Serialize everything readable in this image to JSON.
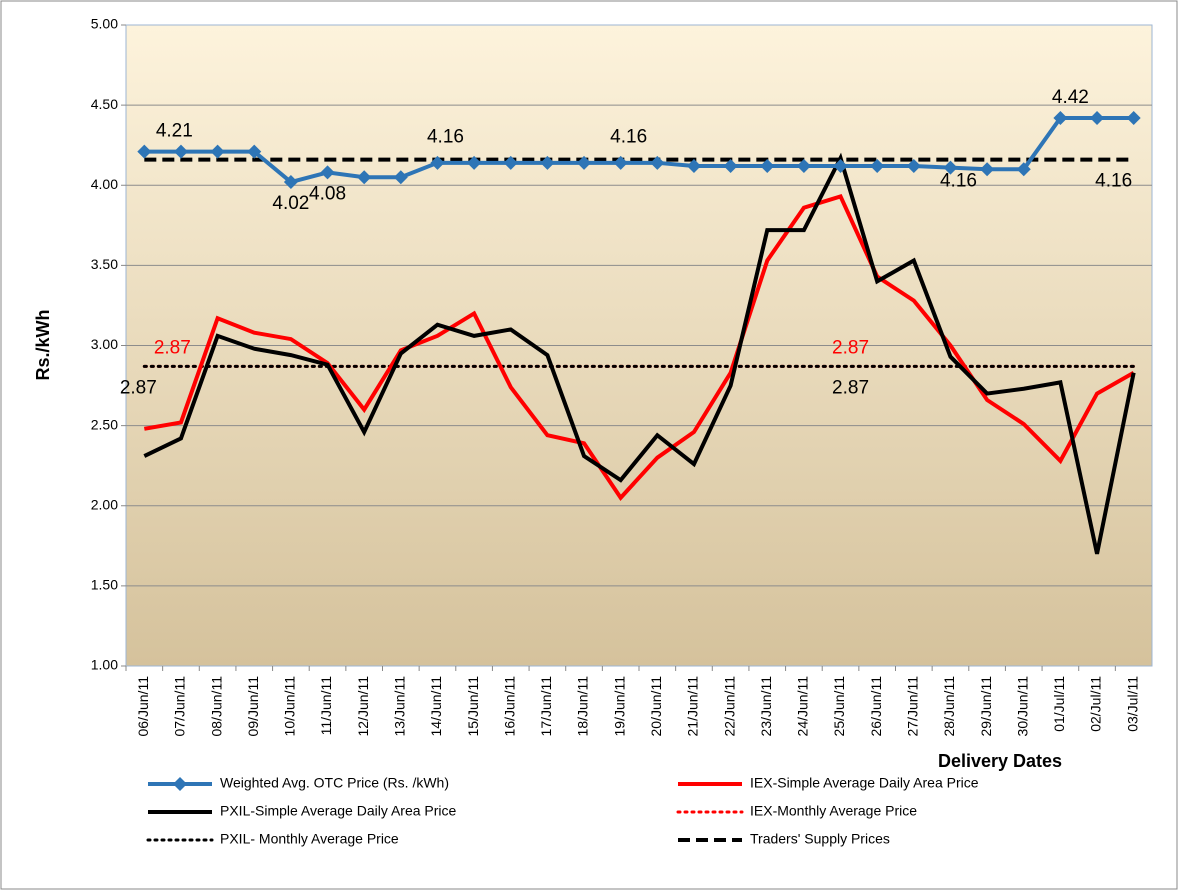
{
  "chart_data": {
    "type": "line",
    "y_axis_label": "Rs./kWh",
    "x_axis_label": "Delivery Dates",
    "categories": [
      "06/Jun/11",
      "07/Jun/11",
      "08/Jun/11",
      "09/Jun/11",
      "10/Jun/11",
      "11/Jun/11",
      "12/Jun/11",
      "13/Jun/11",
      "14/Jun/11",
      "15/Jun/11",
      "16/Jun/11",
      "17/Jun/11",
      "18/Jun/11",
      "19/Jun/11",
      "20/Jun/11",
      "21/Jun/11",
      "22/Jun/11",
      "23/Jun/11",
      "24/Jun/11",
      "25/Jun/11",
      "26/Jun/11",
      "27/Jun/11",
      "28/Jun/11",
      "29/Jun/11",
      "30/Jun/11",
      "01/Jul/11",
      "02/Jul/11",
      "03/Jul/11"
    ],
    "ylim": [
      1,
      5
    ],
    "yticks": [
      {
        "value": 1,
        "label": "1.00"
      },
      {
        "value": 1.5,
        "label": "1.50"
      },
      {
        "value": 2,
        "label": "2.00"
      },
      {
        "value": 2.5,
        "label": "2.50"
      },
      {
        "value": 3,
        "label": "3.00"
      },
      {
        "value": 3.5,
        "label": "3.50"
      },
      {
        "value": 4,
        "label": "4.00"
      },
      {
        "value": 4.5,
        "label": "4.50"
      },
      {
        "value": 5,
        "label": "5.00"
      }
    ],
    "grid": true,
    "series": [
      {
        "name": "Weighted Avg. OTC Price (Rs. /kWh)",
        "color": "#2e75b6",
        "line_style": "solid",
        "marker": "diamond",
        "values": [
          4.21,
          4.21,
          4.21,
          4.21,
          4.02,
          4.08,
          4.05,
          4.05,
          4.14,
          4.14,
          4.14,
          4.14,
          4.14,
          4.14,
          4.14,
          4.12,
          4.12,
          4.12,
          4.12,
          4.12,
          4.12,
          4.12,
          4.11,
          4.1,
          4.1,
          4.42,
          4.42,
          4.42
        ],
        "value_labels": [
          "4.21",
          null,
          null,
          null,
          "4.02",
          "4.08",
          null,
          null,
          null,
          null,
          null,
          null,
          null,
          null,
          null,
          null,
          null,
          null,
          null,
          null,
          null,
          null,
          null,
          null,
          null,
          "4.42",
          null,
          null
        ]
      },
      {
        "name": "IEX-Simple Average Daily Area Price",
        "color": "#ff0000",
        "line_style": "solid",
        "values": [
          2.48,
          2.52,
          3.17,
          3.08,
          3.04,
          2.89,
          2.6,
          2.97,
          3.06,
          3.2,
          2.74,
          2.44,
          2.39,
          2.05,
          2.3,
          2.46,
          2.83,
          3.53,
          3.86,
          3.93,
          3.43,
          3.28,
          3.0,
          2.66,
          2.51,
          2.28,
          2.7,
          2.83
        ]
      },
      {
        "name": "PXIL-Simple Average Daily Area Price",
        "color": "#000000",
        "line_style": "solid",
        "values": [
          2.31,
          2.42,
          3.06,
          2.98,
          2.94,
          2.88,
          2.46,
          2.95,
          3.13,
          3.06,
          3.1,
          2.94,
          2.31,
          2.16,
          2.44,
          2.26,
          2.75,
          3.72,
          3.72,
          4.17,
          3.4,
          3.53,
          2.93,
          2.7,
          2.73,
          2.77,
          1.7,
          2.83
        ]
      },
      {
        "name": "IEX-Monthly Average Price",
        "color": "#ff0000",
        "line_style": "dotted",
        "values": [
          2.87,
          2.87,
          2.87,
          2.87,
          2.87,
          2.87,
          2.87,
          2.87,
          2.87,
          2.87,
          2.87,
          2.87,
          2.87,
          2.87,
          2.87,
          2.87,
          2.87,
          2.87,
          2.87,
          2.87,
          2.87,
          2.87,
          2.87,
          2.87,
          2.87,
          2.87,
          2.87,
          2.87
        ],
        "value_labels": [
          "2.87",
          null,
          null,
          null,
          null,
          null,
          null,
          null,
          null,
          null,
          null,
          null,
          null,
          null,
          null,
          null,
          null,
          null,
          null,
          "2.87",
          null,
          null,
          null,
          null,
          null,
          null,
          null,
          null
        ]
      },
      {
        "name": "PXIL- Monthly Average Price",
        "color": "#000000",
        "line_style": "dotted",
        "values": [
          2.87,
          2.87,
          2.87,
          2.87,
          2.87,
          2.87,
          2.87,
          2.87,
          2.87,
          2.87,
          2.87,
          2.87,
          2.87,
          2.87,
          2.87,
          2.87,
          2.87,
          2.87,
          2.87,
          2.87,
          2.87,
          2.87,
          2.87,
          2.87,
          2.87,
          2.87,
          2.87,
          2.87
        ],
        "value_labels": [
          "2.87",
          null,
          null,
          null,
          null,
          null,
          null,
          null,
          null,
          null,
          null,
          null,
          null,
          null,
          null,
          null,
          null,
          null,
          null,
          "2.87",
          null,
          null,
          null,
          null,
          null,
          null,
          null,
          null
        ]
      },
      {
        "name": "Traders' Supply Prices",
        "color": "#000000",
        "line_style": "dashed",
        "values": [
          4.16,
          4.16,
          4.16,
          4.16,
          4.16,
          4.16,
          4.16,
          4.16,
          4.16,
          4.16,
          4.16,
          4.16,
          4.16,
          4.16,
          4.16,
          4.16,
          4.16,
          4.16,
          4.16,
          4.16,
          4.16,
          4.16,
          4.16,
          4.16,
          4.16,
          4.16,
          4.16,
          4.16
        ],
        "value_labels": [
          null,
          null,
          null,
          null,
          null,
          null,
          null,
          null,
          "4.16",
          null,
          null,
          null,
          null,
          "4.16",
          null,
          null,
          null,
          null,
          null,
          null,
          null,
          null,
          "4.16",
          null,
          null,
          null,
          null,
          "4.16"
        ]
      }
    ]
  }
}
